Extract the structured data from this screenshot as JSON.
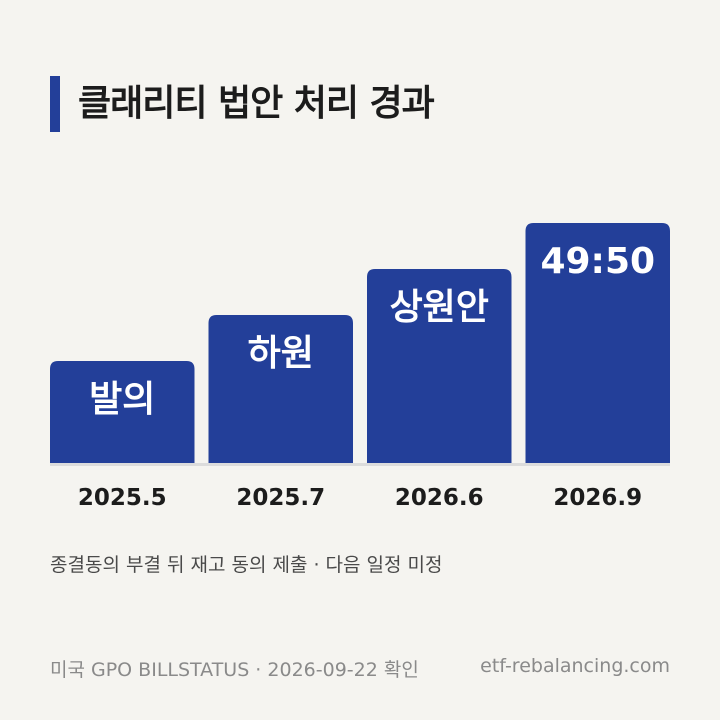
{
  "title": "클래리티 법안 처리 경과",
  "chart_data": {
    "type": "bar",
    "title": "클래리티 법안 처리 경과",
    "categories": [
      "2025.5",
      "2025.7",
      "2026.6",
      "2026.9"
    ],
    "values": [
      1,
      2,
      3,
      4
    ],
    "bar_labels": [
      "발의",
      "하원",
      "상원안",
      "49:50"
    ],
    "xlabel": "",
    "ylabel": "",
    "grid": false,
    "colors": {
      "bar": "#233f99",
      "baseline": "#dcdcdc"
    }
  },
  "note": "종결동의 부결 뒤 재고 동의 제출 · 다음 일정 미정",
  "source": "미국 GPO BILLSTATUS · 2026-09-22 확인",
  "site": "etf-rebalancing.com"
}
